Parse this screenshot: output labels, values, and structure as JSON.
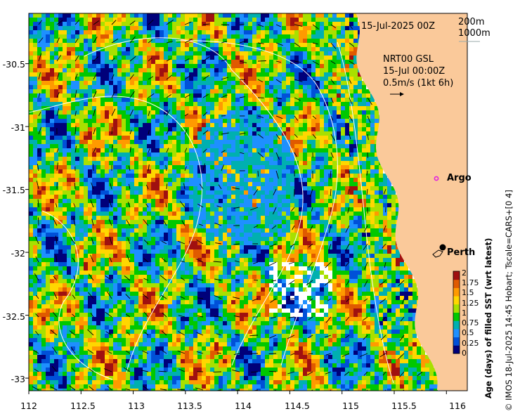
{
  "map": {
    "date_label": "15-Jul-2025 00Z",
    "contour_legend": [
      "200m",
      "1000m"
    ],
    "overlay_lines": [
      "NRT00 GSL",
      "15-Jul 00:00Z",
      "0.5m/s (1kt 6h)"
    ],
    "lon_ticks": [
      "112",
      "112.5",
      "113",
      "113.5",
      "114",
      "114.5",
      "115",
      "115.5",
      "116"
    ],
    "lat_ticks": [
      "-30.5",
      "-31",
      "-31.5",
      "-32",
      "-32.5",
      "-33"
    ],
    "lon_range": [
      112,
      116.2
    ],
    "lat_range": [
      -33.1,
      -30.1
    ],
    "places": [
      {
        "name": "Argo",
        "lon": 115.8,
        "lat": -31.42,
        "marker": "magenta-circle"
      },
      {
        "name": "Perth",
        "lon": 115.86,
        "lat": -31.95,
        "marker": "black-dot"
      }
    ],
    "colorbar": {
      "title": "Age (days) of filled SST (wrt latest)",
      "ticks": [
        "0",
        "0.25",
        "0.5",
        "0.75",
        "1",
        "1.25",
        "1.5",
        "1.75",
        "2"
      ],
      "range": [
        0,
        2
      ]
    },
    "credit": "© IMOS 18-Jul-2025 14:45 Hobart; Tscale=CARS+[0 4]",
    "land_color": "#fac99a"
  }
}
